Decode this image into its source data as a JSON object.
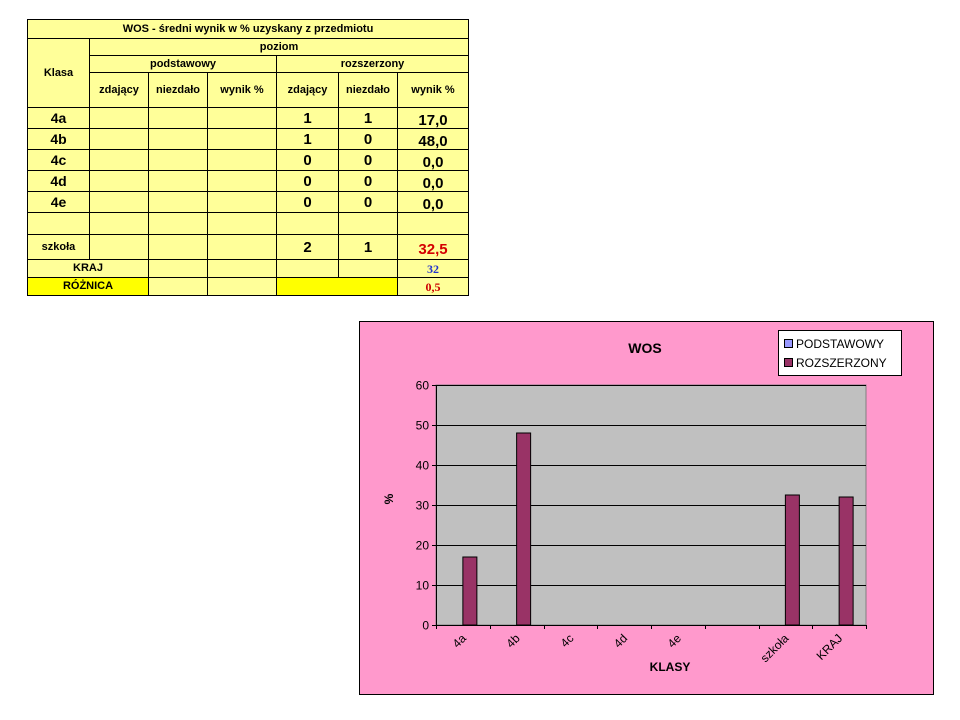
{
  "table": {
    "title": "WOS - średni wynik w % uzyskany z przedmiotu",
    "klasa_header": "Klasa",
    "poziom_header": "poziom",
    "podstawowy_header": "podstawowy",
    "rozszerzony_header": "rozszerzony",
    "sub_headers": [
      "zdający",
      "niezdało",
      "wynik %",
      "zdający",
      "niezdało",
      "wynik %"
    ],
    "rows": [
      {
        "klasa": "4a",
        "r_zdajacy": "1",
        "r_niezdalo": "1",
        "r_wynik": "17,0"
      },
      {
        "klasa": "4b",
        "r_zdajacy": "1",
        "r_niezdalo": "0",
        "r_wynik": "48,0"
      },
      {
        "klasa": "4c",
        "r_zdajacy": "0",
        "r_niezdalo": "0",
        "r_wynik": "0,0"
      },
      {
        "klasa": "4d",
        "r_zdajacy": "0",
        "r_niezdalo": "0",
        "r_wynik": "0,0"
      },
      {
        "klasa": "4e",
        "r_zdajacy": "0",
        "r_niezdalo": "0",
        "r_wynik": "0,0"
      }
    ],
    "szkola": {
      "label": "szkoła",
      "r_zdajacy": "2",
      "r_niezdalo": "1",
      "r_wynik": "32,5"
    },
    "kraj": {
      "label": "KRAJ",
      "value": "32"
    },
    "roznica": {
      "label": "RÓŻNICA",
      "value": "0,5"
    }
  },
  "chart_data": {
    "type": "bar",
    "title": "WOS",
    "xlabel": "KLASY",
    "ylabel": "%",
    "categories": [
      "4a",
      "4b",
      "4c",
      "4d",
      "4e",
      "",
      "szkoła",
      "KRAJ"
    ],
    "series": [
      {
        "name": "PODSTAWOWY",
        "color": "#9999ff",
        "values": [
          0,
          0,
          0,
          0,
          0,
          0,
          0,
          0
        ]
      },
      {
        "name": "ROZSZERZONY",
        "color": "#993366",
        "values": [
          17,
          48,
          0,
          0,
          0,
          0,
          32.5,
          32
        ]
      }
    ],
    "ylim": [
      0,
      60
    ],
    "yticks": [
      0,
      10,
      20,
      30,
      40,
      50,
      60
    ],
    "grid": true,
    "legend_position": "top-right",
    "plot_background": "#c0c0c0",
    "chart_background": "#ff99cc"
  }
}
